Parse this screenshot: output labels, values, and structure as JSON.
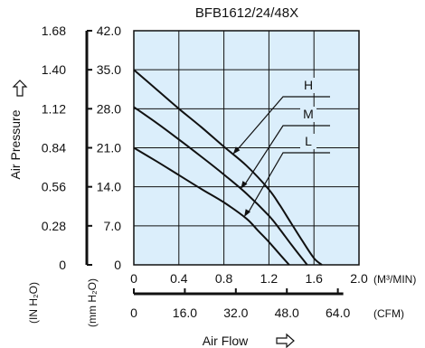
{
  "chart_data": {
    "type": "line",
    "title": "BFB1612/24/48X",
    "xlabel": "Air Flow",
    "ylabel": "Air Pressure",
    "x_unit_primary": "(M³/MIN)",
    "x_unit_secondary": "(CFM)",
    "y_unit_inner": "(mm H₂O)",
    "y_unit_outer": "(IN H₂O)",
    "xlim": [
      0,
      2.0
    ],
    "ylim": [
      0,
      42.0
    ],
    "x_ticks": [
      "0",
      "0.4",
      "0.8",
      "1.2",
      "1.6",
      "2.0"
    ],
    "x_ticks_cfm": [
      "0",
      "16.0",
      "32.0",
      "48.0",
      "64.0"
    ],
    "y_ticks_mm": [
      "0",
      "7.0",
      "14.0",
      "21.0",
      "28.0",
      "35.0",
      "42.0"
    ],
    "y_ticks_in": [
      "0",
      "0.28",
      "0.56",
      "0.84",
      "1.12",
      "1.40",
      "1.68"
    ],
    "grid": true,
    "background_color": "#dbeefb",
    "line_color": "#111111",
    "series": [
      {
        "name": "H",
        "x": [
          0,
          0.2,
          0.4,
          0.6,
          0.8,
          1.0,
          1.2,
          1.3,
          1.4,
          1.5,
          1.6,
          1.67
        ],
        "y": [
          35.0,
          31.5,
          28.0,
          24.7,
          21.2,
          17.8,
          13.5,
          10.6,
          7.4,
          4.2,
          1.2,
          0
        ]
      },
      {
        "name": "M",
        "x": [
          0,
          0.2,
          0.4,
          0.6,
          0.8,
          1.0,
          1.2,
          1.3,
          1.4,
          1.5,
          1.54
        ],
        "y": [
          28.3,
          25.5,
          22.5,
          19.4,
          16.2,
          12.8,
          8.8,
          6.3,
          3.6,
          1.0,
          0
        ]
      },
      {
        "name": "L",
        "x": [
          0,
          0.2,
          0.4,
          0.6,
          0.8,
          1.0,
          1.1,
          1.2,
          1.3,
          1.38
        ],
        "y": [
          21.0,
          18.6,
          16.1,
          13.6,
          11.2,
          8.3,
          6.2,
          4.1,
          1.8,
          0
        ]
      }
    ]
  }
}
